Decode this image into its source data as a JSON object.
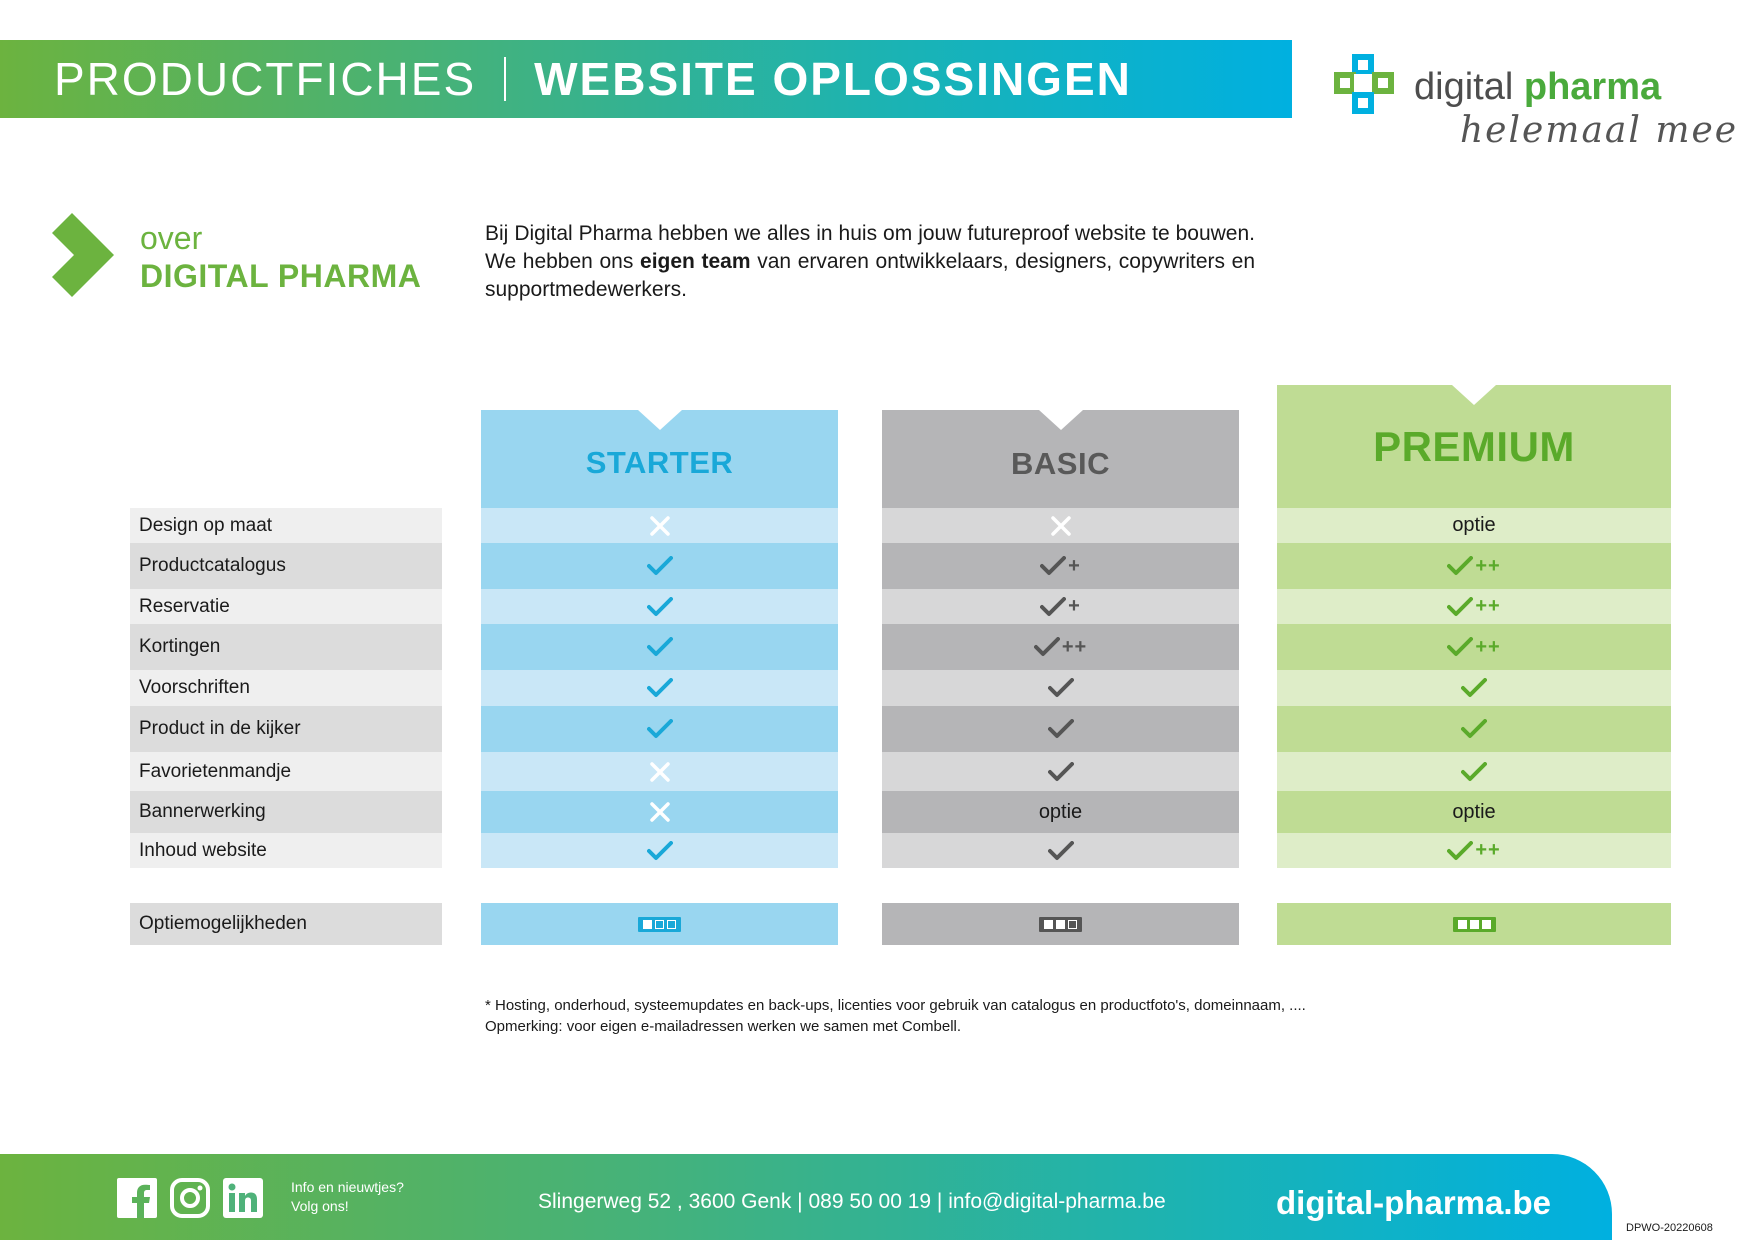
{
  "header": {
    "title_light": "PRODUCTFICHES",
    "title_bold": "WEBSITE OPLOSSINGEN"
  },
  "logo": {
    "word1": "digital",
    "word2": "pharma",
    "slogan": "helemaal mee",
    "colors": {
      "green": "#6cb33f",
      "blue": "#00b0e0"
    }
  },
  "about": {
    "over": "over",
    "title": "DIGITAL PHARMA",
    "text_before": "Bij Digital Pharma hebben we alles in huis om jouw futureproof website te bouwen. We hebben ons ",
    "text_bold": "eigen team",
    "text_after": " van ervaren ontwikkelaars, designers, copywriters en supportmedewerkers."
  },
  "table": {
    "features": [
      "Design op maat",
      "Productcatalogus",
      "Reservatie",
      "Kortingen",
      "Voorschriften",
      "Product in de kijker",
      "Favorietenmandje",
      "Bannerwerking",
      "Inhoud website"
    ],
    "options_label": "Optiemogelijkheden",
    "plans": [
      {
        "name": "STARTER",
        "colors": {
          "head": "#99d6f0",
          "light": "#c9e7f7",
          "dark": "#99d6f0",
          "title": "#19a8d8",
          "mark": "#19a8d8",
          "opt_box": "#19a8d8"
        },
        "cells": [
          {
            "type": "cross"
          },
          {
            "type": "check"
          },
          {
            "type": "check"
          },
          {
            "type": "check"
          },
          {
            "type": "check"
          },
          {
            "type": "check"
          },
          {
            "type": "cross"
          },
          {
            "type": "cross"
          },
          {
            "type": "check"
          }
        ],
        "options_level": 1
      },
      {
        "name": "BASIC",
        "colors": {
          "head": "#b5b5b7",
          "light": "#d7d7d8",
          "dark": "#b5b5b7",
          "title": "#595959",
          "mark": "#555555",
          "opt_box": "#555555"
        },
        "cells": [
          {
            "type": "cross"
          },
          {
            "type": "check",
            "plus": "+"
          },
          {
            "type": "check",
            "plus": "+"
          },
          {
            "type": "check",
            "plus": "++"
          },
          {
            "type": "check"
          },
          {
            "type": "check"
          },
          {
            "type": "check"
          },
          {
            "type": "text",
            "text": "optie"
          },
          {
            "type": "check"
          }
        ],
        "options_level": 2
      },
      {
        "name": "PREMIUM",
        "colors": {
          "head": "#bfdc94",
          "light": "#deedc8",
          "dark": "#bfdc94",
          "title": "#5aaa2a",
          "mark": "#5aaa2a",
          "opt_box": "#5aaa2a"
        },
        "cells": [
          {
            "type": "text",
            "text": "optie"
          },
          {
            "type": "check",
            "plus": "++"
          },
          {
            "type": "check",
            "plus": "++"
          },
          {
            "type": "check",
            "plus": "++"
          },
          {
            "type": "check"
          },
          {
            "type": "check"
          },
          {
            "type": "check"
          },
          {
            "type": "text",
            "text": "optie"
          },
          {
            "type": "check",
            "plus": "++"
          }
        ],
        "options_level": 3
      }
    ]
  },
  "footnote": {
    "line1": "* Hosting, onderhoud, systeemupdates en back-ups, licenties voor gebruik van catalogus en productfoto's, domeinnaam, ....",
    "line2": "Opmerking: voor eigen e-mailadressen werken we samen met Combell."
  },
  "footer": {
    "social": [
      "facebook-icon",
      "instagram-icon",
      "linkedin-icon"
    ],
    "info_line1": "Info en nieuwtjes?",
    "info_line2": "Volg ons!",
    "address": "Slingerweg 52 , 3600 Genk | 089 50 00 19 | info@digital-pharma.be",
    "website": "digital-pharma.be",
    "doc_code": "DPWO-20220608"
  }
}
